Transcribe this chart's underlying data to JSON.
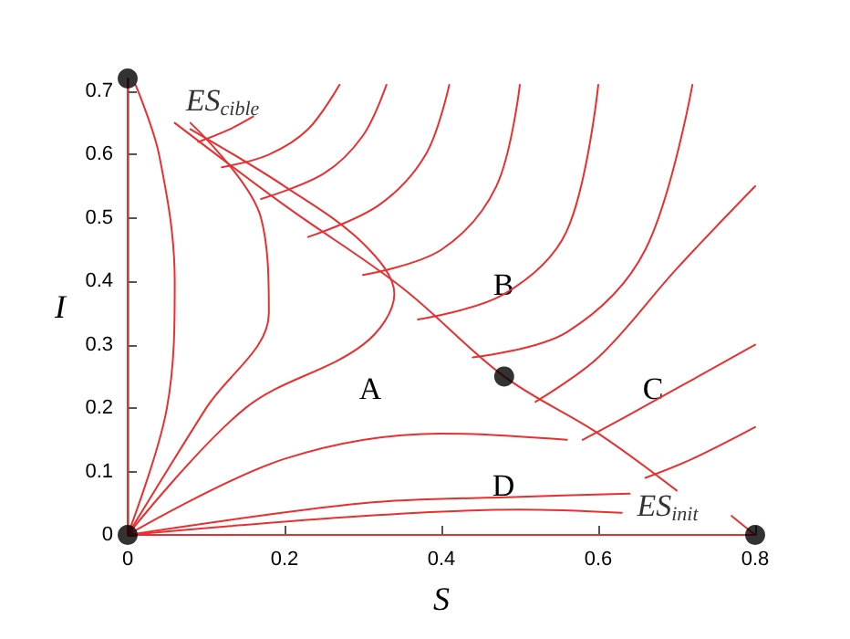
{
  "chart_data": {
    "type": "line",
    "xlabel": "S",
    "ylabel": "I",
    "xlim": [
      0,
      0.8
    ],
    "ylim": [
      0,
      0.72
    ],
    "xticks": [
      0,
      0.2,
      0.4,
      0.6,
      0.8
    ],
    "yticks": [
      0,
      0.1,
      0.2,
      0.3,
      0.4,
      0.5,
      0.6,
      0.7
    ],
    "grid": false,
    "line_style": "solid",
    "marker": "none",
    "series": [
      {
        "color": "#e83030",
        "x": [
          0.06,
          0.2,
          0.35,
          0.48,
          0.6,
          0.7
        ],
        "values": [
          0.65,
          0.52,
          0.39,
          0.25,
          0.16,
          0.07
        ]
      },
      {
        "color": "#e83030",
        "x": [
          0.8,
          0.77
        ],
        "values": [
          0,
          0.03
        ]
      },
      {
        "color": "#e83030",
        "x": [
          0,
          0
        ],
        "values": [
          0,
          0.72
        ]
      },
      {
        "color": "#e83030",
        "x": [
          0,
          0.8
        ],
        "values": [
          0,
          0
        ]
      },
      {
        "color": "#e83030",
        "x": [
          0.09,
          0.13,
          0.16
        ],
        "values": [
          0.62,
          0.64,
          0.66
        ]
      },
      {
        "color": "#e83030",
        "x": [
          0.12,
          0.18,
          0.23,
          0.27
        ],
        "values": [
          0.58,
          0.6,
          0.64,
          0.71
        ]
      },
      {
        "color": "#e83030",
        "x": [
          0.17,
          0.25,
          0.3,
          0.33
        ],
        "values": [
          0.53,
          0.57,
          0.63,
          0.71
        ]
      },
      {
        "color": "#e83030",
        "x": [
          0.23,
          0.32,
          0.38,
          0.41
        ],
        "values": [
          0.47,
          0.52,
          0.6,
          0.71
        ]
      },
      {
        "color": "#e83030",
        "x": [
          0.3,
          0.4,
          0.47,
          0.5
        ],
        "values": [
          0.41,
          0.45,
          0.55,
          0.71
        ]
      },
      {
        "color": "#e83030",
        "x": [
          0.37,
          0.48,
          0.56,
          0.6
        ],
        "values": [
          0.34,
          0.38,
          0.48,
          0.71
        ]
      },
      {
        "color": "#e83030",
        "x": [
          0.44,
          0.56,
          0.66,
          0.72
        ],
        "values": [
          0.28,
          0.32,
          0.45,
          0.71
        ]
      },
      {
        "color": "#e83030",
        "x": [
          0.52,
          0.6,
          0.7,
          0.8
        ],
        "values": [
          0.21,
          0.28,
          0.42,
          0.55
        ]
      },
      {
        "color": "#e83030",
        "x": [
          0.58,
          0.64,
          0.8
        ],
        "values": [
          0.15,
          0.19,
          0.3
        ]
      },
      {
        "color": "#e83030",
        "x": [
          0.66,
          0.72,
          0.8
        ],
        "values": [
          0.09,
          0.12,
          0.17
        ]
      },
      {
        "color": "#e83030",
        "x": [
          0,
          0.2,
          0.4,
          0.56
        ],
        "values": [
          0,
          0.12,
          0.16,
          0.15
        ]
      },
      {
        "color": "#e83030",
        "x": [
          0,
          0.3,
          0.5,
          0.64
        ],
        "values": [
          0,
          0.05,
          0.06,
          0.065
        ]
      },
      {
        "color": "#e83030",
        "x": [
          0,
          0.3,
          0.5,
          0.63
        ],
        "values": [
          0,
          0.03,
          0.04,
          0.035
        ]
      },
      {
        "color": "#e83030",
        "x": [
          0,
          0.15,
          0.3,
          0.34,
          0.3,
          0.2,
          0.08
        ],
        "values": [
          0,
          0.2,
          0.3,
          0.38,
          0.46,
          0.55,
          0.64
        ]
      },
      {
        "color": "#e83030",
        "x": [
          0,
          0.1,
          0.18,
          0.17,
          0.08
        ],
        "values": [
          0,
          0.2,
          0.35,
          0.5,
          0.65
        ]
      },
      {
        "color": "#e83030",
        "x": [
          0,
          0.05,
          0.06,
          0.04,
          0.01
        ],
        "values": [
          0,
          0.2,
          0.4,
          0.6,
          0.71
        ]
      },
      {
        "type": "scatter",
        "color": "#000000",
        "marker": "circle",
        "x": [
          0,
          0,
          0.48,
          0.8
        ],
        "values": [
          0.72,
          0,
          0.25,
          0
        ]
      }
    ],
    "annotations": [
      {
        "text": "ES$_{cible}$",
        "x": 0,
        "y": 0.72
      },
      {
        "text": "ES$_{init}$",
        "x": 0.8,
        "y": 0
      },
      "A",
      "B",
      "C",
      "D"
    ]
  }
}
